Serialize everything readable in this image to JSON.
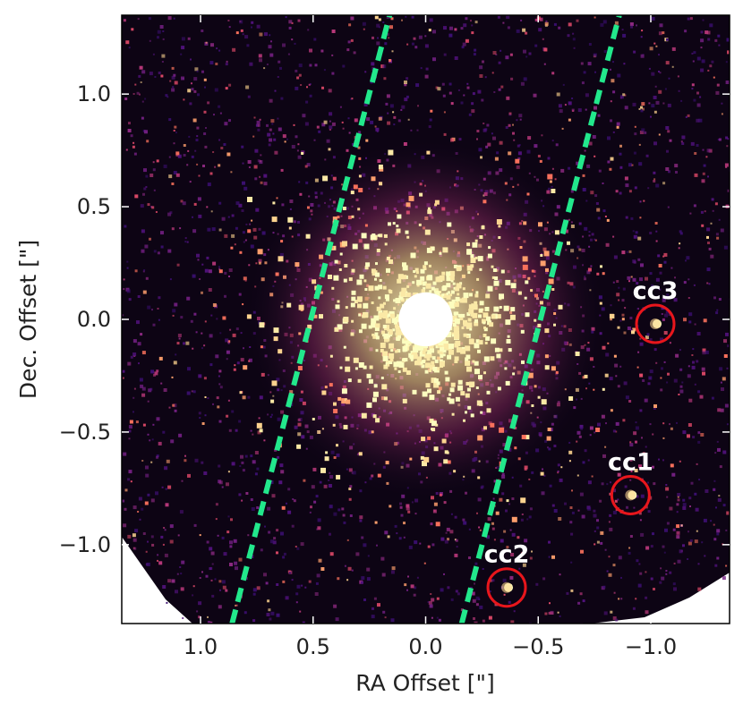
{
  "chart_data": {
    "type": "image",
    "xlabel": "RA Offset [\"]",
    "ylabel": "Dec. Offset [\"]",
    "xlim": [
      1.35,
      -1.35
    ],
    "ylim": [
      -1.35,
      1.35
    ],
    "x_ticks": [
      1.0,
      0.5,
      0.0,
      -0.5,
      -1.0
    ],
    "x_tick_labels": [
      "1.0",
      "0.5",
      "0.0",
      "−0.5",
      "−1.0"
    ],
    "y_ticks": [
      1.0,
      0.5,
      0.0,
      -0.5,
      -1.0
    ],
    "y_tick_labels": [
      "1.0",
      "0.5",
      "0.0",
      "−0.5",
      "−1.0"
    ],
    "colormap": "magma",
    "colors": {
      "guide_line": "#22e88c",
      "marker_circle": "#e8161c",
      "label": "#ffffff",
      "masked_center": "#ffffff"
    },
    "masked_center": {
      "ra": 0.0,
      "dec": 0.0,
      "radius": 0.12
    },
    "guide_lines": [
      {
        "ra_start": 0.86,
        "dec_start": -1.35,
        "ra_end": 0.16,
        "dec_end": 1.35
      },
      {
        "ra_start": -0.16,
        "dec_start": -1.35,
        "ra_end": -0.86,
        "dec_end": 1.35
      }
    ],
    "sources": [
      {
        "label": "cc3",
        "ra": -1.02,
        "dec": -0.02
      },
      {
        "label": "cc1",
        "ra": -0.91,
        "dec": -0.78
      },
      {
        "label": "cc2",
        "ra": -0.36,
        "dec": -1.19
      }
    ]
  }
}
